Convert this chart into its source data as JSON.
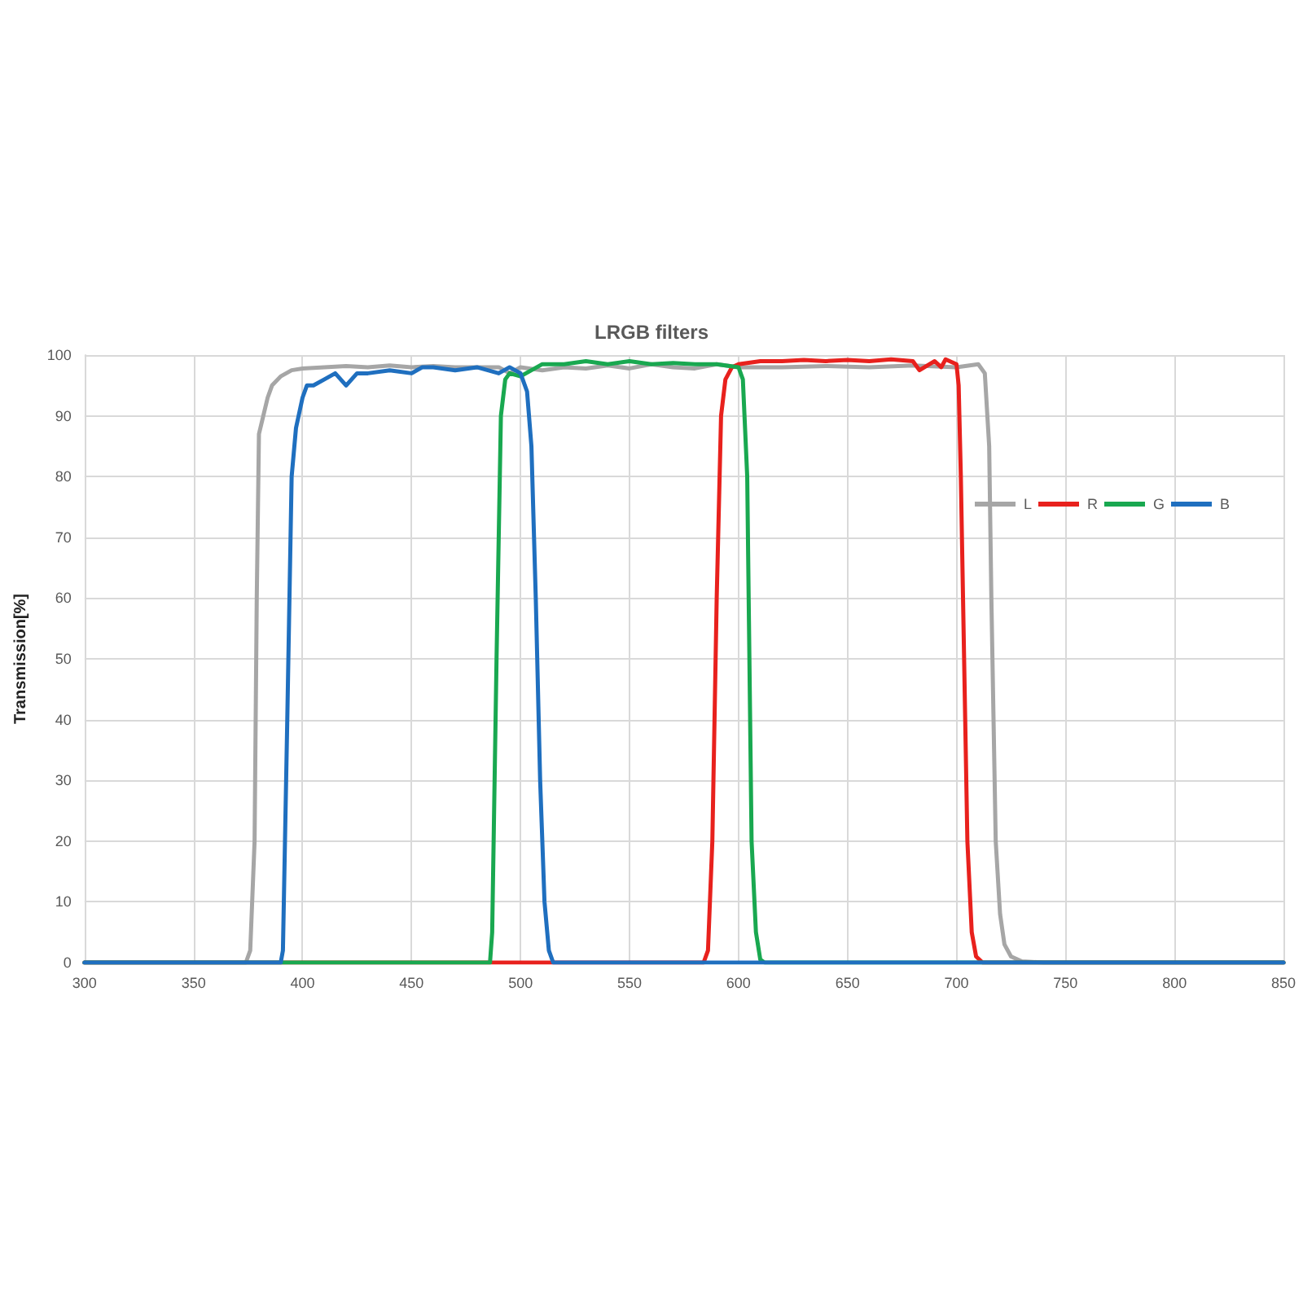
{
  "chart_data": {
    "type": "line",
    "title": "LRGB filters",
    "ylabel": "Transmission[%]",
    "xlim": [
      300,
      850
    ],
    "xticks": [
      300,
      350,
      400,
      450,
      500,
      550,
      600,
      650,
      700,
      750,
      800,
      850
    ],
    "ylim": [
      0,
      100
    ],
    "yticks": [
      0,
      10,
      20,
      30,
      40,
      50,
      60,
      70,
      80,
      90,
      100
    ],
    "grid": true,
    "legend": "top right",
    "marker": "none",
    "line_style": "solid",
    "series": [
      {
        "name": "L",
        "color": "#a6a6a6",
        "x": [
          300,
          374,
          376,
          378,
          379,
          380,
          382,
          384,
          386,
          390,
          395,
          400,
          410,
          420,
          430,
          440,
          450,
          460,
          470,
          480,
          490,
          495,
          500,
          510,
          520,
          530,
          540,
          550,
          560,
          570,
          580,
          590,
          600,
          620,
          640,
          660,
          680,
          700,
          710,
          713,
          715,
          716,
          717,
          718,
          720,
          722,
          725,
          730,
          740,
          850
        ],
        "values": [
          0,
          0,
          2,
          20,
          60,
          87,
          90,
          93,
          95,
          96.5,
          97.5,
          97.8,
          98,
          98.2,
          98,
          98.3,
          98,
          98.2,
          98,
          98,
          98,
          97,
          98,
          97.5,
          98,
          97.8,
          98.3,
          97.8,
          98.5,
          98,
          97.8,
          98.5,
          98,
          98,
          98.2,
          98,
          98.3,
          98,
          98.5,
          97,
          85,
          60,
          40,
          20,
          8,
          3,
          1,
          0.2,
          0,
          0
        ]
      },
      {
        "name": "R",
        "color": "#e8211d",
        "x": [
          300,
          584,
          586,
          588,
          590,
          592,
          594,
          597,
          600,
          610,
          620,
          630,
          640,
          650,
          660,
          670,
          680,
          683,
          690,
          693,
          695,
          700,
          701,
          702,
          703,
          704,
          705,
          707,
          709,
          712,
          850
        ],
        "values": [
          0,
          0,
          2,
          20,
          60,
          90,
          96,
          98,
          98.5,
          99,
          99,
          99.2,
          99,
          99.2,
          99,
          99.3,
          99,
          97.5,
          99,
          98,
          99.3,
          98.5,
          95,
          80,
          60,
          40,
          20,
          5,
          1,
          0,
          0
        ]
      },
      {
        "name": "G",
        "color": "#19a850",
        "x": [
          300,
          486,
          487,
          489,
          491,
          493,
          495,
          500,
          505,
          510,
          520,
          530,
          540,
          550,
          560,
          570,
          580,
          590,
          600,
          602,
          604,
          605,
          606,
          608,
          610,
          612,
          850
        ],
        "values": [
          0,
          0,
          5,
          50,
          90,
          96,
          97,
          96.5,
          97.5,
          98.5,
          98.5,
          99,
          98.5,
          99,
          98.5,
          98.7,
          98.5,
          98.5,
          98,
          96,
          80,
          50,
          20,
          5,
          0.5,
          0,
          0
        ]
      },
      {
        "name": "B",
        "color": "#1f6fbf",
        "x": [
          300,
          390,
          391,
          393,
          395,
          397,
          400,
          402,
          405,
          410,
          415,
          420,
          425,
          430,
          440,
          450,
          455,
          460,
          470,
          480,
          490,
          495,
          500,
          503,
          505,
          507,
          509,
          511,
          513,
          515,
          850
        ],
        "values": [
          0,
          0,
          2,
          40,
          80,
          88,
          93,
          95,
          95,
          96,
          97,
          95,
          97,
          97,
          97.5,
          97,
          98,
          98,
          97.5,
          98,
          97,
          98,
          97,
          94,
          85,
          60,
          30,
          10,
          2,
          0,
          0
        ]
      }
    ]
  }
}
